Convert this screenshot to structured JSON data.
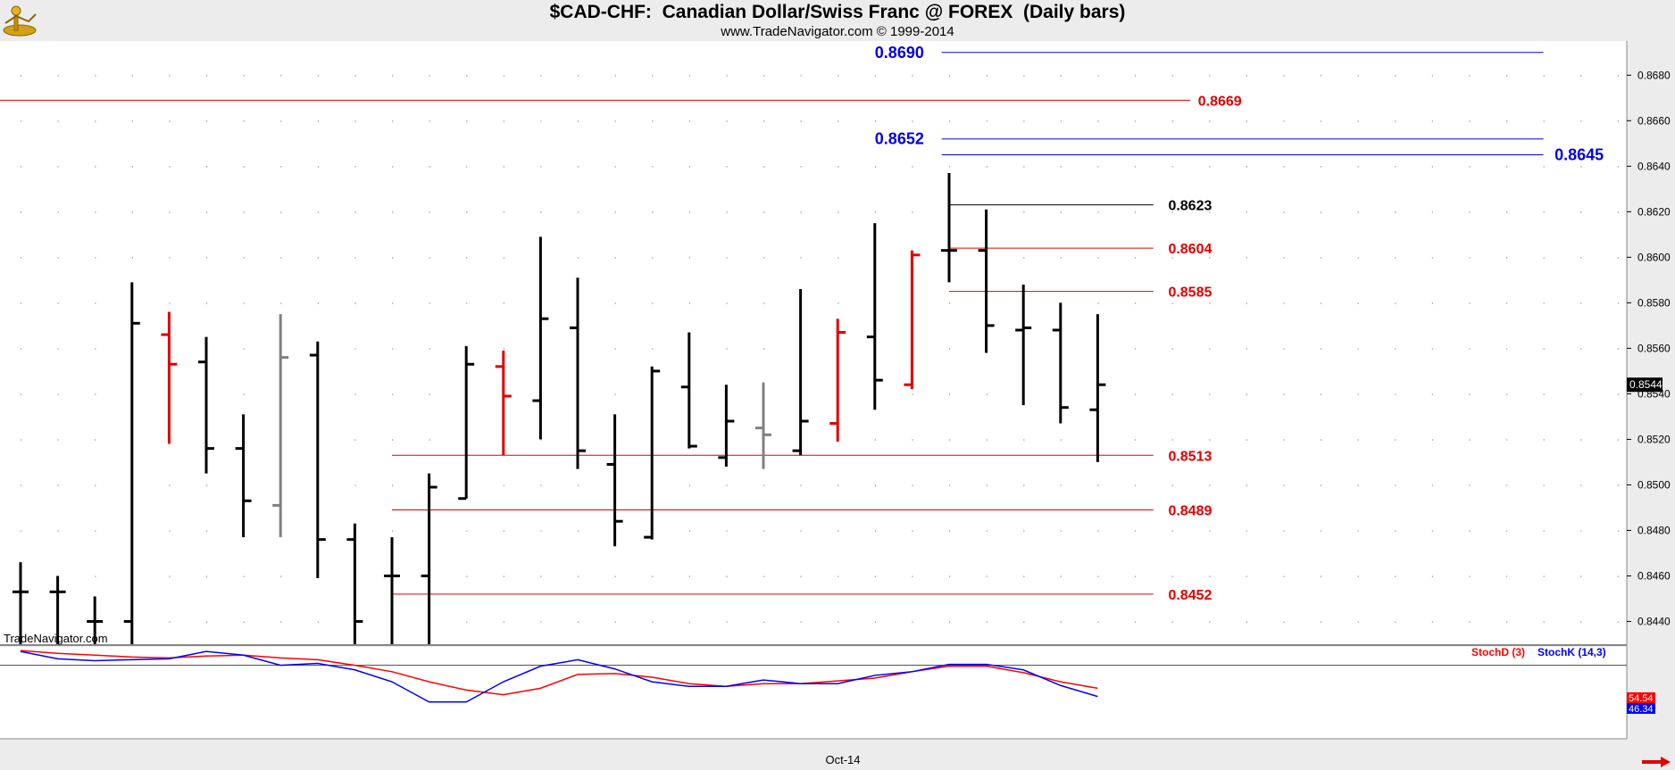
{
  "header": {
    "title": "$CAD-CHF:  Canadian Dollar/Swiss Franc @ FOREX  (Daily bars)",
    "subtitle": "www.TradeNavigator.com © 1999-2014"
  },
  "watermark": "TradeNavigator.com",
  "colors": {
    "up_bar": "#000000",
    "highlight_bar": "#e00000",
    "neutral_bar": "#808080",
    "red_level": "#e00000",
    "blue_level": "#0000e0",
    "black_level": "#000000",
    "stoch_d": "#ff0000",
    "stoch_k": "#0000ff"
  },
  "chart_data": {
    "type": "ohlc",
    "y_ticks": [
      "0.8440",
      "0.8460",
      "0.8480",
      "0.8500",
      "0.8520",
      "0.8540",
      "0.8560",
      "0.8580",
      "0.8600",
      "0.8620",
      "0.8640",
      "0.8660",
      "0.8680"
    ],
    "ylim": [
      0.843,
      0.8695
    ],
    "last_price": "0.8544",
    "x_label": "Oct-14",
    "bars": [
      {
        "o": 0.8453,
        "h": 0.8466,
        "l": 0.843,
        "c": 0.8453,
        "color": "black"
      },
      {
        "o": 0.8453,
        "h": 0.846,
        "l": 0.843,
        "c": 0.8453,
        "color": "black"
      },
      {
        "o": 0.844,
        "h": 0.8451,
        "l": 0.843,
        "c": 0.844,
        "color": "black"
      },
      {
        "o": 0.844,
        "h": 0.8589,
        "l": 0.843,
        "c": 0.8571,
        "color": "black"
      },
      {
        "o": 0.8566,
        "h": 0.8576,
        "l": 0.8518,
        "c": 0.8553,
        "color": "red"
      },
      {
        "o": 0.8554,
        "h": 0.8565,
        "l": 0.8505,
        "c": 0.8516,
        "color": "black"
      },
      {
        "o": 0.8516,
        "h": 0.8531,
        "l": 0.8477,
        "c": 0.8493,
        "color": "black"
      },
      {
        "o": 0.8491,
        "h": 0.8575,
        "l": 0.8477,
        "c": 0.8556,
        "color": "gray"
      },
      {
        "o": 0.8557,
        "h": 0.8563,
        "l": 0.8459,
        "c": 0.8476,
        "color": "black"
      },
      {
        "o": 0.8476,
        "h": 0.8483,
        "l": 0.843,
        "c": 0.844,
        "color": "black"
      },
      {
        "o": 0.846,
        "h": 0.8477,
        "l": 0.843,
        "c": 0.846,
        "color": "black"
      },
      {
        "o": 0.846,
        "h": 0.8505,
        "l": 0.843,
        "c": 0.8499,
        "color": "black"
      },
      {
        "o": 0.8494,
        "h": 0.8561,
        "l": 0.8494,
        "c": 0.8553,
        "color": "black"
      },
      {
        "o": 0.8552,
        "h": 0.8559,
        "l": 0.8513,
        "c": 0.8539,
        "color": "red"
      },
      {
        "o": 0.8537,
        "h": 0.8609,
        "l": 0.852,
        "c": 0.8573,
        "color": "black"
      },
      {
        "o": 0.8569,
        "h": 0.8591,
        "l": 0.8507,
        "c": 0.8515,
        "color": "black"
      },
      {
        "o": 0.8509,
        "h": 0.8531,
        "l": 0.8473,
        "c": 0.8484,
        "color": "black"
      },
      {
        "o": 0.8477,
        "h": 0.8552,
        "l": 0.8476,
        "c": 0.855,
        "color": "black"
      },
      {
        "o": 0.8543,
        "h": 0.8567,
        "l": 0.8516,
        "c": 0.8517,
        "color": "black"
      },
      {
        "o": 0.8512,
        "h": 0.8544,
        "l": 0.8508,
        "c": 0.8528,
        "color": "black"
      },
      {
        "o": 0.8525,
        "h": 0.8545,
        "l": 0.8507,
        "c": 0.8522,
        "color": "gray"
      },
      {
        "o": 0.8515,
        "h": 0.8586,
        "l": 0.8513,
        "c": 0.8528,
        "color": "black"
      },
      {
        "o": 0.8527,
        "h": 0.8573,
        "l": 0.8519,
        "c": 0.8567,
        "color": "red"
      },
      {
        "o": 0.8565,
        "h": 0.8615,
        "l": 0.8533,
        "c": 0.8546,
        "color": "black"
      },
      {
        "o": 0.8544,
        "h": 0.8603,
        "l": 0.8542,
        "c": 0.8601,
        "color": "red"
      },
      {
        "o": 0.8603,
        "h": 0.8637,
        "l": 0.8589,
        "c": 0.8603,
        "color": "black"
      },
      {
        "o": 0.8603,
        "h": 0.8621,
        "l": 0.8558,
        "c": 0.857,
        "color": "black"
      },
      {
        "o": 0.8568,
        "h": 0.8588,
        "l": 0.8535,
        "c": 0.8569,
        "color": "black"
      },
      {
        "o": 0.8568,
        "h": 0.858,
        "l": 0.8527,
        "c": 0.8534,
        "color": "black"
      },
      {
        "o": 0.8533,
        "h": 0.8575,
        "l": 0.851,
        "c": 0.8544,
        "color": "black"
      }
    ],
    "levels": [
      {
        "label": "0.8690",
        "value": 0.869,
        "color": "blue",
        "from_bar": 24.8,
        "to_bar": 41,
        "label_side": "left",
        "label_bar": 23
      },
      {
        "label": "0.8669",
        "value": 0.8669,
        "color": "red",
        "from_bar": -0.6,
        "to_bar": 31.5,
        "label_side": "right",
        "label_bar": 31.7
      },
      {
        "label": "0.8652",
        "value": 0.8652,
        "color": "blue",
        "from_bar": 24.8,
        "to_bar": 41,
        "label_side": "left",
        "label_bar": 23
      },
      {
        "label": "0.8645",
        "value": 0.8645,
        "color": "blue",
        "from_bar": 24.8,
        "to_bar": 41,
        "label_side": "right",
        "label_bar": 41.3
      },
      {
        "label": "0.8623",
        "value": 0.8623,
        "color": "black",
        "from_bar": 25,
        "to_bar": 30.5,
        "label_side": "right",
        "label_bar": 30.9
      },
      {
        "label": "0.8604",
        "value": 0.8604,
        "color": "red",
        "from_bar": 25,
        "to_bar": 30.5,
        "label_side": "right",
        "label_bar": 30.9
      },
      {
        "label": "0.8585",
        "value": 0.8585,
        "color": "red",
        "from_bar": 25,
        "to_bar": 30.5,
        "label_side": "right",
        "label_bar": 30.9
      },
      {
        "label": "0.8513",
        "value": 0.8513,
        "color": "red",
        "from_bar": 10,
        "to_bar": 30.5,
        "label_side": "right",
        "label_bar": 30.9
      },
      {
        "label": "0.8489",
        "value": 0.8489,
        "color": "red",
        "from_bar": 10,
        "to_bar": 30.5,
        "label_side": "right",
        "label_bar": 30.9
      },
      {
        "label": "0.8452",
        "value": 0.8452,
        "color": "red",
        "from_bar": 10,
        "to_bar": 30.5,
        "label_side": "right",
        "label_bar": 30.9
      }
    ],
    "stochastic": {
      "d_label": "StochD (3)",
      "k_label": "StochK (14,3)",
      "d_value": "54.54",
      "k_value": "46.34",
      "ylim": [
        0,
        100
      ],
      "ref_line": 80,
      "d": [
        96,
        93,
        91,
        89,
        88,
        90,
        91,
        88,
        86,
        80,
        73,
        62,
        53,
        48,
        55,
        70,
        71,
        67,
        60,
        57,
        60,
        60,
        63,
        66,
        73,
        79,
        79,
        72,
        62,
        55
      ],
      "k": [
        95,
        87,
        85,
        86,
        87,
        95,
        91,
        80,
        82,
        75,
        62,
        40,
        40,
        62,
        79,
        86,
        76,
        62,
        57,
        57,
        64,
        60,
        60,
        69,
        73,
        81,
        81,
        75,
        58,
        46
      ]
    }
  }
}
